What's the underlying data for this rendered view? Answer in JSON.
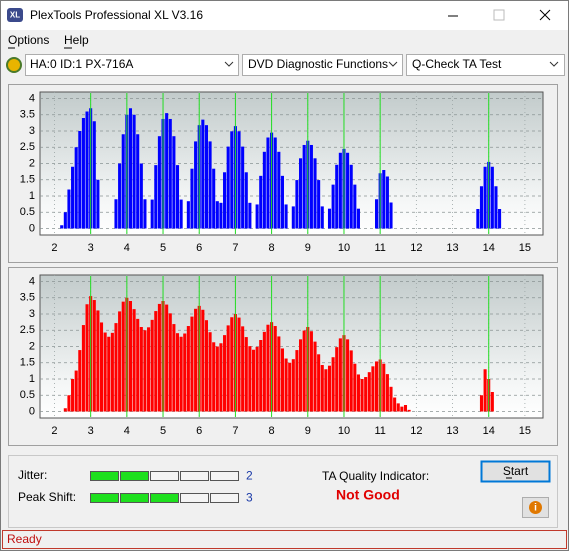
{
  "window": {
    "title": "PlexTools Professional XL V3.16"
  },
  "menu": [
    "Options",
    "Help"
  ],
  "toolbar": {
    "drive": "HA:0 ID:1  PX-716A",
    "function": "DVD Diagnostic Functions",
    "test": "Q-Check TA Test"
  },
  "chart_data": [
    {
      "type": "bar",
      "xlim": [
        1.6,
        15.5
      ],
      "ylim": [
        -0.2,
        4.2
      ],
      "xticks": [
        2,
        3,
        4,
        5,
        6,
        7,
        8,
        9,
        10,
        11,
        12,
        13,
        14,
        15
      ],
      "yticks": [
        0,
        0.5,
        1,
        1.5,
        2,
        2.5,
        3,
        3.5,
        4
      ],
      "grid": true,
      "reference_lines": [
        3,
        4,
        5,
        6,
        7,
        8,
        9,
        10,
        11,
        14
      ],
      "reference_color": "#22dd22",
      "x": [
        2.2,
        2.3,
        2.4,
        2.5,
        2.6,
        2.7,
        2.8,
        2.9,
        3.0,
        3.1,
        3.2,
        3.7,
        3.8,
        3.9,
        4.0,
        4.1,
        4.2,
        4.3,
        4.4,
        4.5,
        4.7,
        4.8,
        4.9,
        5.0,
        5.1,
        5.2,
        5.3,
        5.4,
        5.5,
        5.7,
        5.8,
        5.9,
        6.0,
        6.1,
        6.2,
        6.3,
        6.4,
        6.5,
        6.6,
        6.7,
        6.8,
        6.9,
        7.0,
        7.1,
        7.2,
        7.3,
        7.4,
        7.6,
        7.7,
        7.8,
        7.9,
        8.0,
        8.1,
        8.2,
        8.3,
        8.4,
        8.6,
        8.7,
        8.8,
        8.9,
        9.0,
        9.1,
        9.2,
        9.3,
        9.4,
        9.6,
        9.7,
        9.8,
        9.9,
        10.0,
        10.1,
        10.2,
        10.3,
        10.4,
        10.9,
        11.0,
        11.1,
        11.2,
        11.3,
        13.7,
        13.8,
        13.9,
        14.0,
        14.1,
        14.2,
        14.3
      ],
      "series": [
        {
          "color": "#0000ff",
          "values": [
            0.1,
            0.5,
            1.2,
            1.9,
            2.5,
            3.0,
            3.4,
            3.6,
            3.7,
            3.3,
            1.5,
            0.9,
            2.0,
            2.9,
            3.5,
            3.7,
            3.5,
            2.9,
            2.0,
            0.9,
            0.89,
            1.95,
            2.84,
            3.37,
            3.55,
            3.37,
            2.84,
            1.95,
            0.89,
            0.84,
            1.84,
            2.68,
            3.18,
            3.35,
            3.18,
            2.68,
            1.84,
            0.84,
            0.79,
            1.73,
            2.52,
            2.99,
            3.15,
            2.99,
            2.52,
            1.73,
            0.79,
            0.74,
            1.62,
            2.36,
            2.8,
            2.95,
            2.8,
            2.36,
            1.62,
            0.74,
            0.68,
            1.49,
            2.16,
            2.57,
            2.7,
            2.57,
            2.16,
            1.49,
            0.68,
            0.61,
            1.35,
            1.96,
            2.33,
            2.45,
            2.33,
            1.96,
            1.35,
            0.61,
            0.9,
            1.7,
            1.8,
            1.6,
            0.8,
            0.6,
            1.3,
            1.9,
            2.05,
            1.9,
            1.3,
            0.6
          ]
        }
      ]
    },
    {
      "type": "bar",
      "xlim": [
        1.6,
        15.5
      ],
      "ylim": [
        -0.2,
        4.2
      ],
      "xticks": [
        2,
        3,
        4,
        5,
        6,
        7,
        8,
        9,
        10,
        11,
        12,
        13,
        14,
        15
      ],
      "yticks": [
        0,
        0.5,
        1,
        1.5,
        2,
        2.5,
        3,
        3.5,
        4
      ],
      "grid": true,
      "reference_lines": [
        3,
        4,
        5,
        6,
        7,
        8,
        9,
        10,
        11,
        14
      ],
      "reference_color": "#22dd22",
      "x": [
        2.3,
        2.4,
        2.5,
        2.6,
        2.7,
        2.8,
        2.9,
        3.0,
        3.1,
        3.2,
        3.3,
        3.4,
        3.5,
        3.6,
        3.7,
        3.8,
        3.9,
        4.0,
        4.1,
        4.2,
        4.3,
        4.4,
        4.5,
        4.6,
        4.7,
        4.8,
        4.9,
        5.0,
        5.1,
        5.2,
        5.3,
        5.4,
        5.5,
        5.6,
        5.7,
        5.8,
        5.9,
        6.0,
        6.1,
        6.2,
        6.3,
        6.4,
        6.5,
        6.6,
        6.7,
        6.8,
        6.9,
        7.0,
        7.1,
        7.2,
        7.3,
        7.4,
        7.5,
        7.6,
        7.7,
        7.8,
        7.9,
        8.0,
        8.1,
        8.2,
        8.3,
        8.4,
        8.5,
        8.6,
        8.7,
        8.8,
        8.9,
        9.0,
        9.1,
        9.2,
        9.3,
        9.4,
        9.5,
        9.6,
        9.7,
        9.8,
        9.9,
        10.0,
        10.1,
        10.2,
        10.3,
        10.4,
        10.5,
        10.6,
        10.7,
        10.8,
        10.9,
        11.0,
        11.1,
        11.2,
        11.3,
        11.4,
        11.5,
        11.6,
        11.7,
        11.8,
        13.8,
        13.9,
        14.0,
        14.1
      ],
      "series": [
        {
          "color": "#ff0000",
          "values": [
            0.1,
            0.5,
            1.0,
            1.26,
            1.89,
            2.66,
            3.3,
            3.55,
            3.43,
            3.11,
            2.74,
            2.43,
            2.3,
            2.42,
            2.72,
            3.08,
            3.38,
            3.5,
            3.4,
            3.15,
            2.85,
            2.6,
            2.5,
            2.59,
            2.82,
            3.09,
            3.31,
            3.4,
            3.29,
            3.02,
            2.69,
            2.41,
            2.3,
            2.4,
            2.63,
            2.92,
            3.16,
            3.25,
            3.13,
            2.81,
            2.44,
            2.13,
            2.0,
            2.1,
            2.35,
            2.65,
            2.9,
            3.0,
            2.89,
            2.62,
            2.29,
            2.01,
            1.9,
            1.99,
            2.2,
            2.45,
            2.67,
            2.75,
            2.63,
            2.31,
            1.94,
            1.63,
            1.5,
            1.61,
            1.89,
            2.22,
            2.49,
            2.6,
            2.47,
            2.15,
            1.76,
            1.43,
            1.3,
            1.41,
            1.67,
            1.98,
            2.25,
            2.35,
            2.22,
            1.88,
            1.47,
            1.14,
            1.0,
            1.06,
            1.21,
            1.39,
            1.54,
            1.6,
            1.47,
            1.15,
            0.76,
            0.43,
            0.25,
            0.15,
            0.2,
            0.05,
            0.5,
            1.3,
            1.0,
            0.6
          ]
        }
      ]
    }
  ],
  "results": {
    "jitter_label": "Jitter:",
    "jitter": 2,
    "peak_shift_label": "Peak Shift:",
    "peak_shift": 3,
    "ta_label": "TA Quality Indicator:",
    "ta_result": "Not Good",
    "start": "Start"
  },
  "status": "Ready"
}
